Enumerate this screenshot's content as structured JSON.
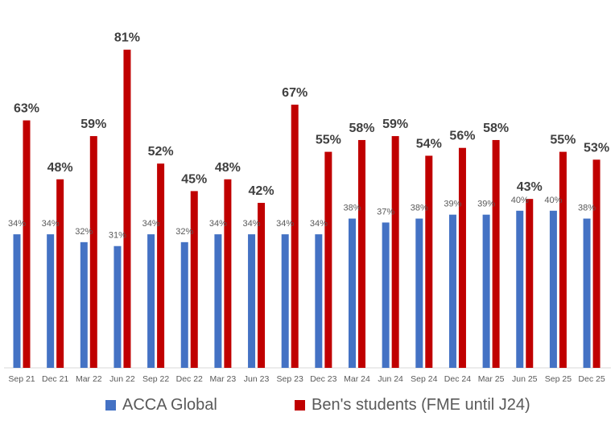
{
  "chart_data": {
    "type": "bar",
    "title": "",
    "xlabel": "",
    "ylabel": "",
    "ylim": [
      0,
      85
    ],
    "grid": false,
    "legend_position": "bottom",
    "categories": [
      "Sep 21",
      "Dec 21",
      "Mar 22",
      "Jun 22",
      "Sep 22",
      "Dec 22",
      "Mar 23",
      "Jun 23",
      "Sep 23",
      "Dec 23",
      "Mar 24",
      "Jun 24",
      "Sep 24",
      "Dec 24",
      "Mar 25",
      "Jun 25",
      "Sep 25",
      "Dec 25"
    ],
    "series": [
      {
        "name": "ACCA Global",
        "color": "#4472C4",
        "values": [
          34,
          34,
          32,
          31,
          34,
          32,
          34,
          34,
          34,
          34,
          38,
          37,
          38,
          39,
          39,
          40,
          40,
          38
        ]
      },
      {
        "name": "Ben's students (FME until J24)",
        "color": "#C00000",
        "values": [
          63,
          48,
          59,
          81,
          52,
          45,
          48,
          42,
          67,
          55,
          58,
          59,
          54,
          56,
          58,
          43,
          55,
          53
        ]
      }
    ]
  }
}
